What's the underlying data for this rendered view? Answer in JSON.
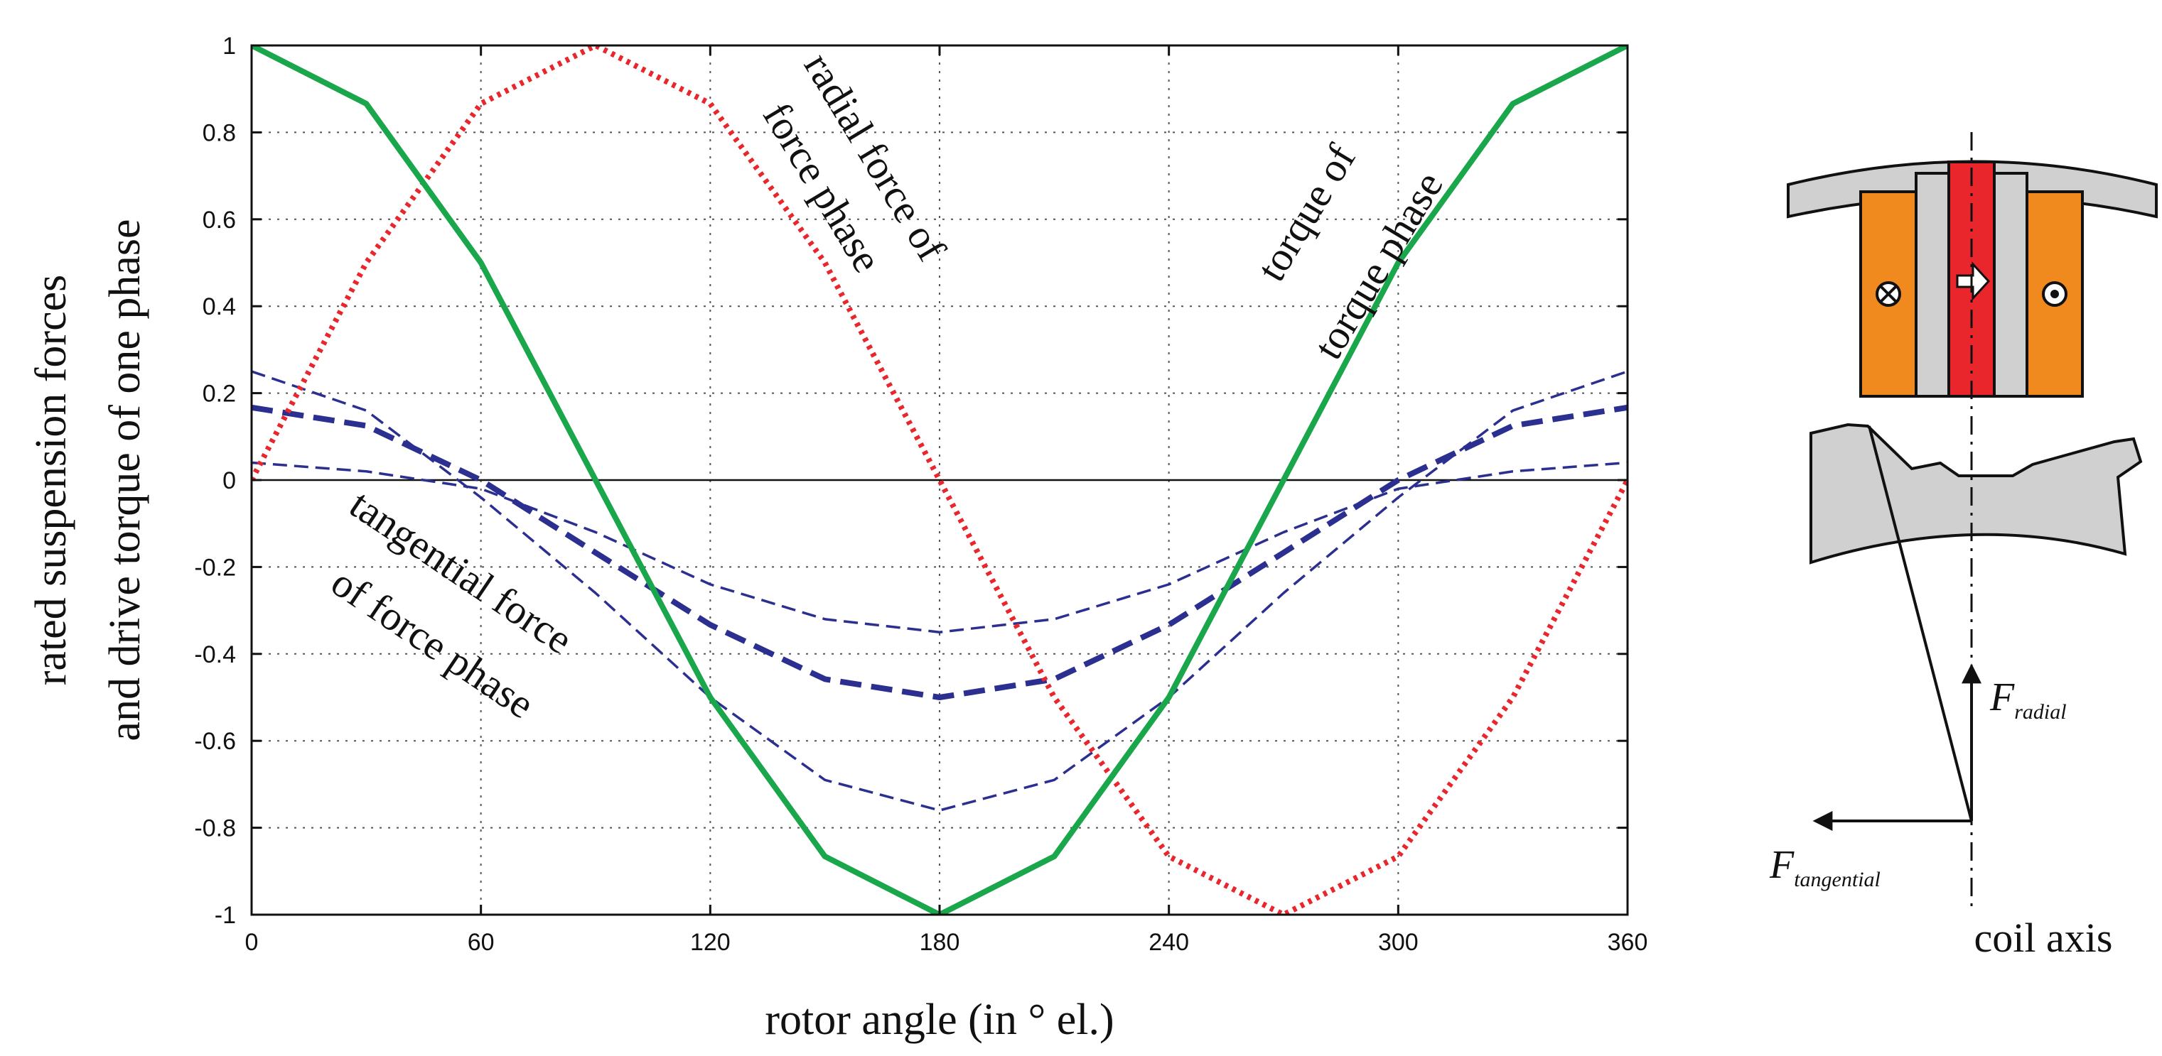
{
  "chart_data": {
    "type": "line",
    "xlabel": "rotor angle (in ° el.)",
    "ylabel_line1": "rated suspension forces",
    "ylabel_line2": "and drive torque of one phase",
    "xlim": [
      0,
      360
    ],
    "ylim": [
      -1,
      1
    ],
    "x_ticks": [
      0,
      60,
      120,
      180,
      240,
      300,
      360
    ],
    "x_tick_labels": [
      "0",
      "60",
      "120",
      "180",
      "240",
      "300",
      "360"
    ],
    "y_ticks": [
      1,
      0.8,
      0.6,
      0.4,
      0.2,
      0,
      -0.2,
      -0.4,
      -0.6,
      -0.8,
      -1
    ],
    "y_tick_labels": [
      "1",
      "0.8",
      "0.6",
      "0.4",
      "0.2",
      "0",
      "-0.2",
      "-0.4",
      "-0.6",
      "-0.8",
      "-1"
    ],
    "grid": true,
    "x": [
      0,
      30,
      60,
      90,
      120,
      150,
      180,
      210,
      240,
      270,
      300,
      330,
      360
    ],
    "series": [
      {
        "name": "torque of torque phase",
        "color": "#1aa64b",
        "style": "solid",
        "values": [
          1,
          0.866,
          0.5,
          0,
          -0.5,
          -0.866,
          -1,
          -0.866,
          -0.5,
          0,
          0.5,
          0.866,
          1
        ]
      },
      {
        "name": "radial force of force phase",
        "color": "#e8262b",
        "style": "dotted",
        "values": [
          0,
          0.5,
          0.866,
          1,
          0.866,
          0.5,
          0,
          -0.5,
          -0.866,
          -1,
          -0.866,
          -0.5,
          0
        ]
      },
      {
        "name": "tangential force of force phase",
        "color": "#2b2f8f",
        "style": "dashed-thick",
        "values": [
          0.167,
          0.125,
          0,
          -0.167,
          -0.333,
          -0.458,
          -0.5,
          -0.458,
          -0.333,
          -0.167,
          0,
          0.125,
          0.167
        ]
      },
      {
        "name": "tangential force of force phase (upper bound)",
        "color": "#2b2f8f",
        "style": "dashed-thin",
        "values": [
          0.25,
          0.16,
          -0.04,
          -0.26,
          -0.5,
          -0.69,
          -0.76,
          -0.69,
          -0.5,
          -0.26,
          -0.04,
          0.16,
          0.25
        ]
      },
      {
        "name": "tangential force of force phase (lower bound)",
        "color": "#2b2f8f",
        "style": "dashed-thin",
        "values": [
          0.04,
          0.02,
          -0.02,
          -0.12,
          -0.24,
          -0.32,
          -0.35,
          -0.32,
          -0.24,
          -0.12,
          -0.02,
          0.02,
          0.04
        ]
      }
    ],
    "annotations": {
      "radial_line1": "radial force of",
      "radial_line2": "force phase",
      "torque_line1": "torque of",
      "torque_line2": "torque phase",
      "tangential_line1": "tangential force",
      "tangential_line2": "of force phase"
    }
  },
  "diagram": {
    "f_radial_main": "F",
    "f_radial_sub": "radial",
    "f_tangential_main": "F",
    "f_tangential_sub": "tangential",
    "coil_axis_label": "coil axis",
    "colors": {
      "iron": "#d0d0d0",
      "coil": "#f08a1e",
      "magnet": "#e8262b"
    }
  }
}
